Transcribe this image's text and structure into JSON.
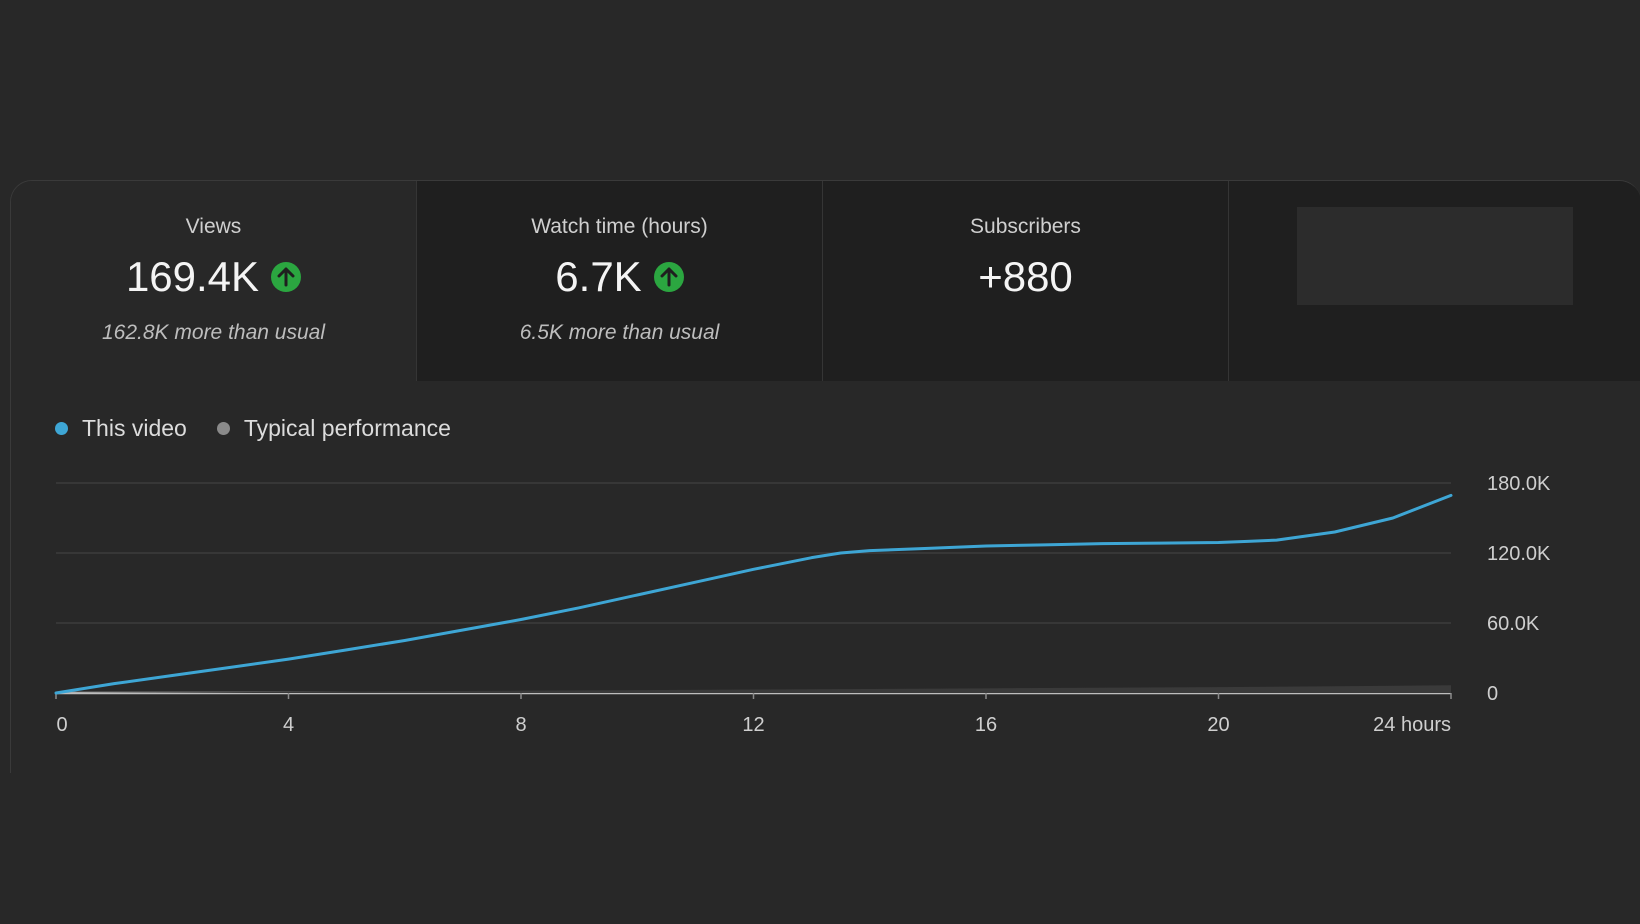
{
  "metrics": [
    {
      "label": "Views",
      "value": "169.4K",
      "trend": "up",
      "note": "162.8K more than usual"
    },
    {
      "label": "Watch time (hours)",
      "value": "6.7K",
      "trend": "up",
      "note": "6.5K more than usual"
    },
    {
      "label": "Subscribers",
      "value": "+880",
      "trend": "none",
      "note": ""
    }
  ],
  "colors": {
    "accent_line": "#3ea6d5",
    "typical_line": "#8a8a8a",
    "up_badge": "#2ba640"
  },
  "chart_data": {
    "type": "line",
    "x_tick_labels": [
      "0",
      "4",
      "8",
      "12",
      "16",
      "20",
      "24 hours"
    ],
    "x_ticks": [
      0,
      4,
      8,
      12,
      16,
      20,
      24
    ],
    "y_tick_labels": [
      "0",
      "60.0K",
      "120.0K",
      "180.0K"
    ],
    "y_ticks": [
      0,
      60000,
      120000,
      180000
    ],
    "xlim": [
      0,
      24
    ],
    "ylim": [
      0,
      180000
    ],
    "grid": true,
    "y_axis_side": "right",
    "legend_placement": "top-left",
    "series": [
      {
        "name": "This video",
        "color": "#3ea6d5",
        "x": [
          0,
          1,
          2,
          3,
          4,
          5,
          6,
          7,
          8,
          9,
          10,
          11,
          12,
          13,
          13.5,
          14,
          15,
          16,
          17,
          18,
          19,
          20,
          20.5,
          21,
          22,
          23,
          24
        ],
        "y": [
          0,
          8000,
          15000,
          22000,
          29000,
          37000,
          45000,
          54000,
          63000,
          73000,
          84000,
          95000,
          106000,
          116000,
          120000,
          122000,
          124000,
          126000,
          127000,
          128000,
          128500,
          129000,
          130000,
          131000,
          138000,
          150000,
          169400
        ]
      },
      {
        "name": "Typical performance",
        "color": "#8a8a8a",
        "x": [
          0,
          4,
          8,
          12,
          16,
          20,
          24
        ],
        "y": [
          0,
          1000,
          2000,
          3000,
          4000,
          5000,
          6600
        ]
      }
    ]
  }
}
